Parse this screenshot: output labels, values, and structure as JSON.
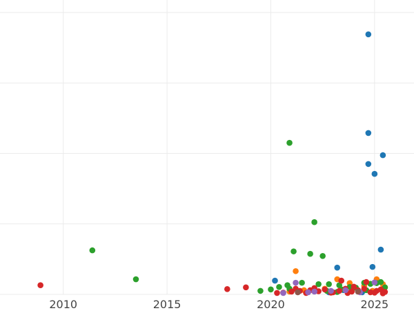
{
  "chart_data": {
    "type": "scatter",
    "title": "",
    "xlabel": "",
    "ylabel": "",
    "xlim": [
      2006.95,
      2026.9
    ],
    "ylim": [
      0,
      900
    ],
    "x_ticks": [
      2010,
      2015,
      2020,
      2025
    ],
    "x_tick_labels": [
      "2010",
      "2015",
      "2020",
      "2025"
    ],
    "y_gridlines": [
      0,
      200,
      400,
      600,
      800
    ],
    "y_tick_labels_visible": false,
    "grid": true,
    "legend": "none",
    "series": [
      {
        "color": "#1f77b4",
        "points": [
          [
            2024.7,
            738
          ],
          [
            2024.7,
            458
          ],
          [
            2025.4,
            395
          ],
          [
            2024.7,
            370
          ],
          [
            2025.0,
            342
          ],
          [
            2025.3,
            127
          ],
          [
            2024.9,
            78
          ],
          [
            2023.2,
            76
          ],
          [
            2020.2,
            39
          ],
          [
            2023.5,
            12
          ],
          [
            2024.4,
            6
          ],
          [
            2022.8,
            6
          ]
        ]
      },
      {
        "color": "#ff7f0e",
        "points": [
          [
            2021.2,
            66
          ],
          [
            2023.2,
            43
          ],
          [
            2023.8,
            32
          ],
          [
            2025.1,
            43
          ],
          [
            2025.4,
            29
          ],
          [
            2024.5,
            24
          ],
          [
            2025.5,
            20
          ],
          [
            2022.6,
            16
          ],
          [
            2021.6,
            12
          ],
          [
            2024.9,
            10
          ],
          [
            2023.9,
            9
          ],
          [
            2020.9,
            8
          ]
        ]
      },
      {
        "color": "#2ca02c",
        "points": [
          [
            2011.4,
            125
          ],
          [
            2013.5,
            43
          ],
          [
            2020.9,
            430
          ],
          [
            2022.1,
            205
          ],
          [
            2021.1,
            122
          ],
          [
            2021.9,
            115
          ],
          [
            2022.5,
            109
          ],
          [
            2024.5,
            33
          ],
          [
            2025.3,
            35
          ],
          [
            2025.1,
            32
          ],
          [
            2024.8,
            30
          ],
          [
            2023.3,
            26
          ],
          [
            2022.8,
            29
          ],
          [
            2021.5,
            33
          ],
          [
            2022.3,
            29
          ],
          [
            2020.4,
            21
          ],
          [
            2019.5,
            10
          ],
          [
            2020.0,
            14
          ],
          [
            2020.9,
            16
          ],
          [
            2023.8,
            21
          ],
          [
            2024.1,
            19
          ],
          [
            2025.5,
            20
          ],
          [
            2022.1,
            11
          ],
          [
            2023.4,
            14
          ],
          [
            2024.6,
            12
          ],
          [
            2021.3,
            9
          ],
          [
            2020.8,
            26
          ],
          [
            2023.2,
            7
          ],
          [
            2022.7,
            10
          ]
        ]
      },
      {
        "color": "#d62728",
        "points": [
          [
            2008.9,
            26
          ],
          [
            2017.9,
            15
          ],
          [
            2018.8,
            20
          ],
          [
            2020.3,
            4
          ],
          [
            2020.6,
            5
          ],
          [
            2021.0,
            8
          ],
          [
            2021.4,
            10
          ],
          [
            2021.9,
            12
          ],
          [
            2022.3,
            9
          ],
          [
            2022.6,
            14
          ],
          [
            2023.0,
            6
          ],
          [
            2023.3,
            10
          ],
          [
            2023.6,
            16
          ],
          [
            2023.9,
            8
          ],
          [
            2024.2,
            12
          ],
          [
            2024.5,
            16
          ],
          [
            2024.8,
            6
          ],
          [
            2025.1,
            10
          ],
          [
            2025.3,
            14
          ],
          [
            2025.5,
            7
          ],
          [
            2021.2,
            16
          ],
          [
            2022.1,
            18
          ],
          [
            2022.9,
            5
          ],
          [
            2023.4,
            39
          ],
          [
            2024.0,
            22
          ],
          [
            2024.6,
            35
          ],
          [
            2025.0,
            5
          ],
          [
            2025.4,
            3
          ],
          [
            2021.7,
            4
          ],
          [
            2023.7,
            4
          ]
        ]
      },
      {
        "color": "#9467bd",
        "points": [
          [
            2021.2,
            33
          ],
          [
            2021.8,
            6
          ],
          [
            2022.1,
            8
          ],
          [
            2023.6,
            12
          ],
          [
            2024.3,
            6
          ],
          [
            2025.0,
            34
          ],
          [
            2020.6,
            4
          ],
          [
            2022.9,
            10
          ]
        ]
      },
      {
        "color": "#8c564b",
        "points": [
          [
            2021.3,
            6
          ],
          [
            2024.2,
            8
          ]
        ]
      }
    ]
  }
}
